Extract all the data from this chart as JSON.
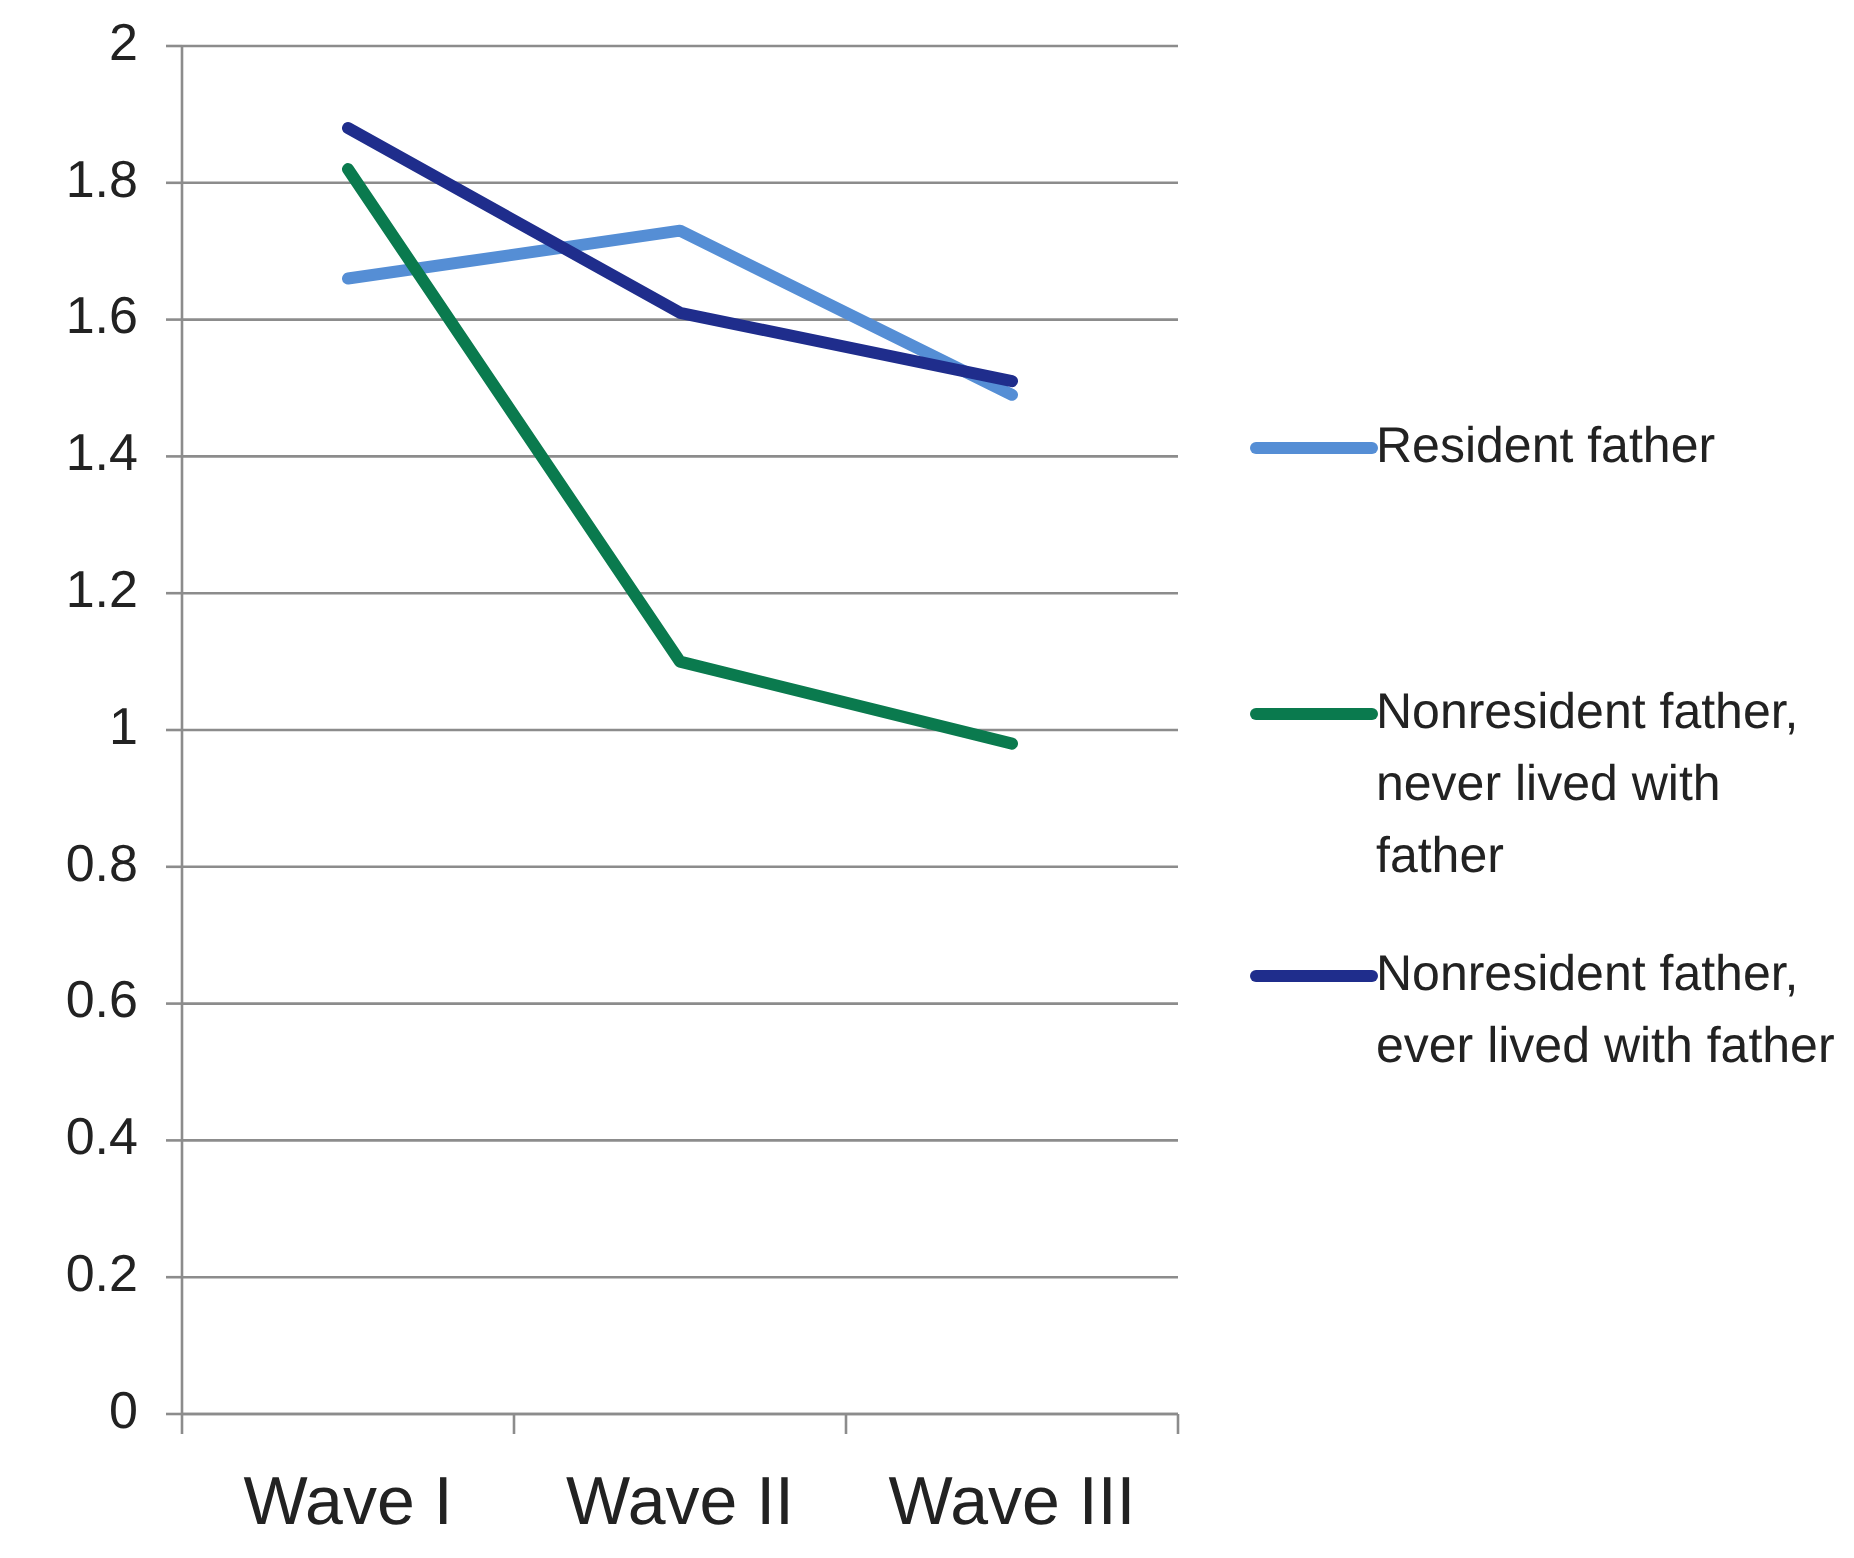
{
  "chart_data": {
    "type": "line",
    "categories": [
      "Wave I",
      "Wave II",
      "Wave III"
    ],
    "series": [
      {
        "name": "Resident father",
        "color": "#558ed5",
        "values": [
          1.66,
          1.73,
          1.49
        ]
      },
      {
        "name": "Nonresident father, never lived with father",
        "color": "#0a7a4e",
        "values": [
          1.82,
          1.1,
          0.98
        ]
      },
      {
        "name": "Nonresident father, ever lived with father",
        "color": "#1f2d8c",
        "values": [
          1.88,
          1.61,
          1.51
        ]
      }
    ],
    "ylim": [
      0,
      2
    ],
    "yticks": [
      0,
      0.2,
      0.4,
      0.6,
      0.8,
      1,
      1.2,
      1.4,
      1.6,
      1.8,
      2
    ],
    "grid": "y",
    "legend": "right",
    "marker": "none",
    "line_style": "solid"
  }
}
